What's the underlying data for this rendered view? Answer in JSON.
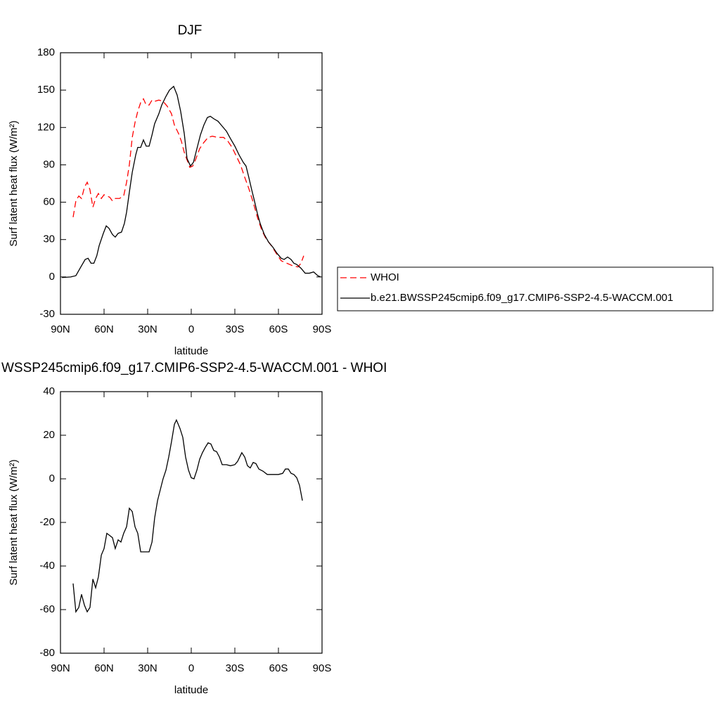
{
  "chart_data": [
    {
      "type": "line",
      "title": "DJF",
      "x_label": "latitude",
      "y_label": "Surf latent heat flux (W/m²)",
      "xlim": [
        90,
        -90
      ],
      "xticks": [
        {
          "value": 90,
          "label": "90N"
        },
        {
          "value": 60,
          "label": "60N"
        },
        {
          "value": 30,
          "label": "30N"
        },
        0,
        {
          "value": -30,
          "label": "30S"
        },
        {
          "value": -60,
          "label": "60S"
        },
        {
          "value": -90,
          "label": "90S"
        }
      ],
      "ylim": [
        -30,
        180
      ],
      "yticks": [
        -30,
        0,
        30,
        60,
        90,
        120,
        150,
        180
      ],
      "legend": "right",
      "series": [
        {
          "name": "WHOI",
          "color": "#ff0000",
          "dashed": true,
          "x": [
            81.3,
            79.4,
            77.4,
            75.5,
            73.5,
            71.6,
            69.7,
            67.7,
            65.8,
            63.9,
            61.9,
            60,
            58.1,
            56.1,
            54.2,
            52.3,
            49.4,
            46.5,
            44.5,
            42.6,
            40.6,
            38.7,
            36.8,
            34.8,
            32.9,
            31,
            29,
            27,
            25.2,
            22.3,
            19.4,
            16.5,
            13.6,
            11.6,
            8.7,
            6.8,
            4.8,
            2.9,
            1,
            -1,
            -2.9,
            -5.8,
            -8.7,
            -11.6,
            -14.5,
            -18.4,
            -22.3,
            -25.2,
            -28.1,
            -31,
            -33.9,
            -36.8,
            -39.6,
            -42.6,
            -45.5,
            -48.4,
            -51.3,
            -55.2,
            -59,
            -61.9,
            -65.8,
            -69.7,
            -73.5,
            -75.5,
            -77.4
          ],
          "values": [
            48,
            61,
            65,
            63,
            72,
            76,
            70,
            56,
            63,
            67,
            63,
            66,
            65,
            64,
            61,
            63,
            63,
            65,
            76,
            90,
            112,
            124,
            133,
            140,
            143,
            138,
            138,
            142,
            141,
            142,
            141,
            137,
            131,
            122,
            115,
            109,
            100,
            94,
            88,
            89,
            94,
            103,
            108,
            112,
            113,
            112,
            112,
            109,
            104,
            97,
            90,
            80,
            71,
            60,
            48,
            38,
            31,
            25,
            18,
            13,
            11,
            9,
            8,
            11,
            17
          ]
        },
        {
          "name": "b.e21.BWSSP245cmip6.f09_g17.CMIP6-SSP2-4.5-WACCM.001",
          "color": "#000000",
          "dashed": false,
          "x": [
            89,
            83,
            79.4,
            76,
            73,
            71,
            69,
            67,
            65,
            63.4,
            60.5,
            58.5,
            56.6,
            54.2,
            52.3,
            50.3,
            48,
            46,
            44.5,
            42.6,
            40.6,
            38.2,
            36.8,
            34.8,
            32.9,
            31,
            29,
            27,
            25.2,
            22.3,
            20.3,
            17.4,
            15,
            12.1,
            9.7,
            7.3,
            4.8,
            2.9,
            0.5,
            -1.5,
            -3.9,
            -6.3,
            -8.7,
            -11.1,
            -13.1,
            -15.5,
            -18.4,
            -21.3,
            -24.2,
            -27,
            -30,
            -32.9,
            -35.8,
            -37.7,
            -39.6,
            -41.6,
            -43.5,
            -45.5,
            -47.4,
            -50.3,
            -53.2,
            -56.1,
            -59,
            -61.9,
            -63.9,
            -66.3,
            -68.7,
            -70.6,
            -72.6,
            -75.5,
            -78.4,
            -81.3,
            -84.2,
            -87.1,
            -89
          ],
          "values": [
            -0.5,
            0,
            1,
            8,
            14,
            15,
            11,
            11,
            17,
            25,
            35,
            41,
            39,
            34,
            32,
            35,
            36,
            43,
            52,
            68,
            84,
            98,
            104,
            104,
            110,
            105,
            105,
            114,
            123,
            131,
            138,
            145,
            150,
            153,
            146,
            133,
            115,
            95,
            89,
            92,
            103,
            114,
            122,
            128,
            129,
            127,
            125,
            121,
            117,
            111,
            105,
            98,
            92,
            89,
            80,
            70,
            61,
            51,
            43,
            34,
            28,
            24,
            19,
            15,
            14,
            16,
            14,
            11,
            10,
            7,
            3,
            3,
            4,
            1,
            0
          ]
        }
      ]
    },
    {
      "type": "line",
      "title": "WSSP245cmip6.f09_g17.CMIP6-SSP2-4.5-WACCM.001 - WHOI",
      "x_label": "latitude",
      "y_label": "Surf latent heat flux (W/m²)",
      "xlim": [
        90,
        -90
      ],
      "xticks": [
        {
          "value": 90,
          "label": "90N"
        },
        {
          "value": 60,
          "label": "60N"
        },
        {
          "value": 30,
          "label": "30N"
        },
        0,
        {
          "value": -30,
          "label": "30S"
        },
        {
          "value": -60,
          "label": "60S"
        },
        {
          "value": -90,
          "label": "90S"
        }
      ],
      "ylim": [
        -80,
        40
      ],
      "yticks": [
        -80,
        -60,
        -40,
        -20,
        0,
        20,
        40
      ],
      "color": "#000000",
      "x": [
        81.3,
        79.4,
        77.4,
        75.5,
        73.5,
        71.6,
        69.7,
        67.7,
        65.8,
        63.9,
        61.9,
        60,
        58.1,
        56.1,
        54.2,
        52.3,
        50.3,
        48.4,
        46.5,
        44.5,
        42.6,
        40.6,
        38.7,
        36.8,
        34.8,
        32.9,
        31,
        29,
        27,
        25.2,
        23.2,
        21.3,
        19.4,
        17.4,
        15.5,
        13.6,
        11.6,
        10.2,
        7.7,
        5.8,
        3.9,
        1.9,
        0,
        -1.9,
        -3.9,
        -5.8,
        -7.7,
        -9.7,
        -11.6,
        -13.5,
        -15.5,
        -17.4,
        -19.4,
        -21.3,
        -24.2,
        -27,
        -30,
        -31.9,
        -34.8,
        -36.8,
        -38.7,
        -40.6,
        -42.6,
        -44.5,
        -46.5,
        -49.4,
        -52.3,
        -56.1,
        -60,
        -62.9,
        -64.8,
        -66.8,
        -68.7,
        -70.6,
        -72.6,
        -74.5,
        -76.5
      ],
      "values": [
        -48,
        -61,
        -59,
        -53,
        -58,
        -61,
        -59,
        -46,
        -50,
        -45,
        -35,
        -32,
        -25,
        -26,
        -27,
        -32,
        -28,
        -29,
        -25,
        -22,
        -13.5,
        -15,
        -22,
        -25,
        -33.5,
        -33.5,
        -33.5,
        -33.5,
        -29,
        -18,
        -10,
        -5,
        0,
        4,
        10,
        17,
        25,
        27,
        23,
        19,
        10,
        4,
        0.5,
        0,
        4,
        9,
        12,
        14.5,
        16.5,
        16,
        13,
        12.5,
        10,
        6.5,
        6.5,
        6,
        6.5,
        8,
        12,
        10,
        6,
        5,
        7.5,
        7,
        4.5,
        3.5,
        2,
        2,
        2,
        2.5,
        4.5,
        4.5,
        2.5,
        2,
        0.5,
        -3,
        -10
      ]
    }
  ]
}
